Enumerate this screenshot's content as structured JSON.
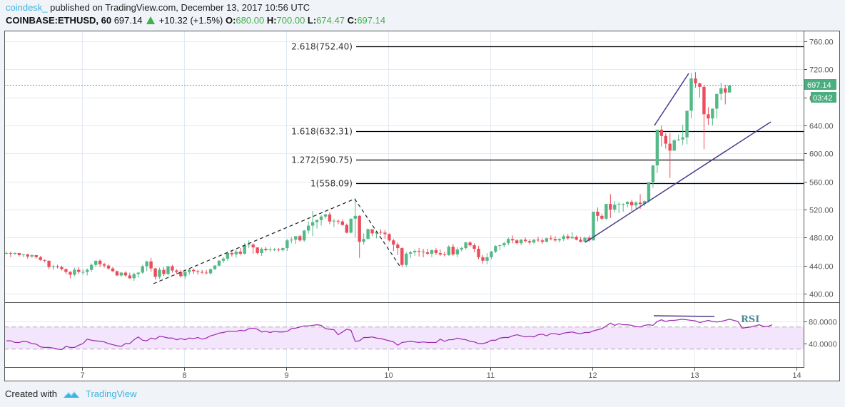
{
  "header": {
    "author": "coindesk_",
    "published": "published on TradingView.com, December 13, 2017 10:56 UTC",
    "symbol": "COINBASE:ETHUSD, 60",
    "last": "697.14",
    "change": "+10.32 (+1.5%)",
    "o_label": "O:",
    "o": "680.00",
    "h_label": "H:",
    "h": "700.00",
    "l_label": "L:",
    "l": "674.47",
    "c_label": "C:",
    "c": "697.14"
  },
  "footer": {
    "created_with": "Created with",
    "brand": "TradingView"
  },
  "colors": {
    "up": "#53b987",
    "down": "#eb4d5c",
    "rsi": "#9c27b0",
    "rsi_band": "#f3e5fc",
    "trend": "#4a3b8f",
    "last_price": "#4bae80",
    "author": "#3ab4e0"
  },
  "chart_data": {
    "type": "candlestick",
    "title": "COINBASE:ETHUSD, 60",
    "xlabel": "",
    "ylabel": "",
    "ylim": [
      390,
      770
    ],
    "y_ticks": [
      "760.00",
      "720.00",
      "680.00",
      "640.00",
      "600.00",
      "560.00",
      "520.00",
      "480.00",
      "440.00",
      "400.00"
    ],
    "x_ticks": [
      "7",
      "8",
      "9",
      "10",
      "11",
      "12",
      "13",
      "14"
    ],
    "last_price_label": "697.14",
    "countdown_label": "03:42",
    "fib_levels": [
      {
        "label": "2.618(752.40)",
        "value": 752.4
      },
      {
        "label": "1.618(632.31)",
        "value": 632.31
      },
      {
        "label": "1.272(590.75)",
        "value": 590.75
      },
      {
        "label": "1(558.09)",
        "value": 558.09
      }
    ],
    "candles_ohlc": [
      [
        458,
        460,
        456,
        458
      ],
      [
        458,
        460,
        452,
        457
      ],
      [
        457,
        459,
        455,
        458
      ],
      [
        458,
        458,
        453,
        455
      ],
      [
        455,
        457,
        452,
        456
      ],
      [
        456,
        457,
        450,
        453
      ],
      [
        453,
        456,
        451,
        455
      ],
      [
        455,
        455,
        450,
        452
      ],
      [
        452,
        454,
        447,
        448
      ],
      [
        448,
        449,
        445,
        447
      ],
      [
        447,
        447,
        435,
        438
      ],
      [
        438,
        441,
        434,
        439
      ],
      [
        439,
        441,
        436,
        438
      ],
      [
        438,
        440,
        433,
        435
      ],
      [
        435,
        436,
        428,
        431
      ],
      [
        431,
        432,
        422,
        427
      ],
      [
        427,
        437,
        425,
        434
      ],
      [
        434,
        438,
        428,
        431
      ],
      [
        431,
        435,
        427,
        431
      ],
      [
        431,
        436,
        426,
        434
      ],
      [
        434,
        443,
        431,
        441
      ],
      [
        441,
        447,
        438,
        447
      ],
      [
        447,
        449,
        438,
        442
      ],
      [
        442,
        444,
        437,
        440
      ],
      [
        440,
        442,
        434,
        436
      ],
      [
        436,
        438,
        431,
        432
      ],
      [
        432,
        433,
        425,
        426
      ],
      [
        426,
        431,
        424,
        430
      ],
      [
        430,
        432,
        424,
        426
      ],
      [
        426,
        430,
        421,
        422
      ],
      [
        422,
        430,
        418,
        428
      ],
      [
        428,
        431,
        423,
        430
      ],
      [
        430,
        441,
        428,
        439
      ],
      [
        439,
        447,
        432,
        446
      ],
      [
        446,
        451,
        431,
        436
      ],
      [
        436,
        437,
        420,
        424
      ],
      [
        424,
        437,
        421,
        434
      ],
      [
        434,
        438,
        425,
        428
      ],
      [
        428,
        440,
        426,
        439
      ],
      [
        439,
        441,
        430,
        433
      ],
      [
        433,
        435,
        428,
        431
      ],
      [
        431,
        434,
        423,
        425
      ],
      [
        425,
        434,
        421,
        431
      ],
      [
        431,
        435,
        427,
        434
      ],
      [
        434,
        436,
        428,
        432
      ],
      [
        432,
        434,
        427,
        431
      ],
      [
        431,
        434,
        428,
        430
      ],
      [
        430,
        434,
        428,
        429
      ],
      [
        429,
        436,
        427,
        435
      ],
      [
        435,
        441,
        434,
        440
      ],
      [
        440,
        448,
        439,
        447
      ],
      [
        447,
        452,
        444,
        450
      ],
      [
        450,
        460,
        447,
        458
      ],
      [
        458,
        461,
        453,
        456
      ],
      [
        456,
        463,
        451,
        460
      ],
      [
        460,
        465,
        455,
        457
      ],
      [
        457,
        472,
        456,
        469
      ],
      [
        469,
        476,
        465,
        470
      ],
      [
        470,
        472,
        457,
        466
      ],
      [
        466,
        466,
        456,
        458
      ],
      [
        458,
        466,
        454,
        464
      ],
      [
        464,
        467,
        460,
        462
      ],
      [
        462,
        466,
        460,
        463
      ],
      [
        463,
        465,
        461,
        463
      ],
      [
        463,
        465,
        460,
        462
      ],
      [
        462,
        466,
        460,
        465
      ],
      [
        465,
        478,
        461,
        476
      ],
      [
        476,
        481,
        472,
        477
      ],
      [
        477,
        482,
        471,
        482
      ],
      [
        482,
        484,
        474,
        476
      ],
      [
        476,
        491,
        474,
        490
      ],
      [
        490,
        503,
        486,
        497
      ],
      [
        497,
        518,
        482,
        502
      ],
      [
        502,
        506,
        493,
        505
      ],
      [
        505,
        512,
        497,
        510
      ],
      [
        510,
        514,
        507,
        513
      ],
      [
        513,
        516,
        499,
        503
      ],
      [
        503,
        507,
        495,
        504
      ],
      [
        504,
        506,
        499,
        503
      ],
      [
        503,
        506,
        497,
        498
      ],
      [
        498,
        500,
        486,
        487
      ],
      [
        487,
        507,
        486,
        507
      ],
      [
        507,
        535,
        480,
        511
      ],
      [
        511,
        512,
        451,
        474
      ],
      [
        474,
        486,
        470,
        478
      ],
      [
        478,
        493,
        478,
        492
      ],
      [
        492,
        490,
        482,
        486
      ],
      [
        486,
        490,
        479,
        488
      ],
      [
        488,
        492,
        484,
        487
      ],
      [
        487,
        491,
        478,
        485
      ],
      [
        485,
        486,
        474,
        476
      ],
      [
        476,
        478,
        461,
        470
      ],
      [
        470,
        473,
        455,
        465
      ],
      [
        465,
        466,
        438,
        441
      ],
      [
        441,
        459,
        438,
        457
      ],
      [
        457,
        461,
        451,
        459
      ],
      [
        459,
        463,
        454,
        461
      ],
      [
        461,
        465,
        453,
        460
      ],
      [
        460,
        464,
        452,
        459
      ],
      [
        459,
        464,
        455,
        457
      ],
      [
        457,
        463,
        452,
        462
      ],
      [
        462,
        465,
        455,
        458
      ],
      [
        458,
        463,
        454,
        456
      ],
      [
        456,
        460,
        453,
        455
      ],
      [
        455,
        469,
        454,
        467
      ],
      [
        467,
        471,
        454,
        456
      ],
      [
        456,
        466,
        452,
        463
      ],
      [
        463,
        467,
        460,
        465
      ],
      [
        465,
        474,
        463,
        473
      ],
      [
        473,
        475,
        467,
        469
      ],
      [
        469,
        472,
        459,
        464
      ],
      [
        464,
        468,
        449,
        452
      ],
      [
        452,
        455,
        443,
        447
      ],
      [
        447,
        458,
        442,
        452
      ],
      [
        452,
        461,
        449,
        460
      ],
      [
        460,
        469,
        458,
        468
      ],
      [
        468,
        470,
        462,
        469
      ],
      [
        469,
        474,
        466,
        472
      ],
      [
        472,
        480,
        469,
        478
      ],
      [
        478,
        483,
        472,
        476
      ],
      [
        476,
        478,
        470,
        472
      ],
      [
        472,
        478,
        469,
        477
      ],
      [
        477,
        480,
        473,
        475
      ],
      [
        475,
        478,
        470,
        473
      ],
      [
        473,
        478,
        471,
        477
      ],
      [
        477,
        481,
        474,
        476
      ],
      [
        476,
        479,
        471,
        474
      ],
      [
        474,
        480,
        473,
        479
      ],
      [
        479,
        483,
        476,
        478
      ],
      [
        478,
        482,
        474,
        476
      ],
      [
        476,
        479,
        473,
        478
      ],
      [
        478,
        485,
        475,
        482
      ],
      [
        482,
        485,
        477,
        479
      ],
      [
        479,
        488,
        478,
        481
      ],
      [
        481,
        483,
        476,
        477
      ],
      [
        477,
        481,
        473,
        474
      ],
      [
        474,
        481,
        473,
        480
      ],
      [
        480,
        483,
        474,
        476
      ],
      [
        476,
        516,
        476,
        517
      ],
      [
        517,
        523,
        503,
        511
      ],
      [
        511,
        514,
        505,
        507
      ],
      [
        507,
        528,
        505,
        528
      ],
      [
        528,
        542,
        508,
        520
      ],
      [
        520,
        532,
        516,
        527
      ],
      [
        527,
        531,
        515,
        528
      ],
      [
        528,
        529,
        517,
        528
      ],
      [
        528,
        532,
        523,
        531
      ],
      [
        531,
        534,
        518,
        526
      ],
      [
        526,
        532,
        521,
        530
      ],
      [
        530,
        542,
        521,
        528
      ],
      [
        528,
        533,
        525,
        532
      ],
      [
        532,
        558,
        530,
        559
      ],
      [
        559,
        575,
        551,
        583
      ],
      [
        583,
        607,
        572,
        634
      ],
      [
        634,
        640,
        610,
        625
      ],
      [
        625,
        629,
        607,
        614
      ],
      [
        614,
        629,
        565,
        604
      ],
      [
        604,
        620,
        604,
        619
      ],
      [
        619,
        627,
        618,
        620
      ],
      [
        620,
        641,
        612,
        623
      ],
      [
        623,
        648,
        613,
        661
      ],
      [
        661,
        715,
        650,
        707
      ],
      [
        707,
        716,
        694,
        700
      ],
      [
        700,
        701,
        680,
        695
      ],
      [
        695,
        698,
        606,
        656
      ],
      [
        656,
        666,
        641,
        650
      ],
      [
        650,
        664,
        640,
        664
      ],
      [
        664,
        678,
        650,
        685
      ],
      [
        685,
        701,
        676,
        693
      ],
      [
        693,
        698,
        670,
        687
      ],
      [
        687,
        696,
        688,
        697
      ]
    ],
    "rsi": {
      "label": "RSI",
      "y_ticks": [
        "80.0000",
        "40.0000"
      ],
      "upper": 70,
      "lower": 30,
      "values": [
        45,
        45,
        42,
        42,
        44,
        43,
        40,
        39,
        34,
        33,
        33,
        32,
        30,
        29,
        35,
        33,
        33,
        37,
        40,
        48,
        46,
        45,
        44,
        43,
        40,
        38,
        36,
        35,
        40,
        40,
        47,
        52,
        46,
        45,
        50,
        48,
        53,
        52,
        50,
        50,
        47,
        49,
        47,
        50,
        49,
        51,
        48,
        50,
        54,
        56,
        59,
        60,
        62,
        62,
        62,
        64,
        63,
        67,
        68,
        66,
        61,
        62,
        60,
        62,
        61,
        61,
        62,
        67,
        68,
        70,
        72,
        72,
        73,
        74,
        73,
        67,
        66,
        65,
        56,
        61,
        66,
        64,
        44,
        45,
        51,
        51,
        52,
        50,
        49,
        47,
        45,
        43,
        37,
        42,
        43,
        44,
        43,
        42,
        43,
        42,
        42,
        42,
        48,
        44,
        47,
        47,
        50,
        48,
        47,
        44,
        43,
        40,
        40,
        42,
        46,
        46,
        50,
        51,
        51,
        54,
        56,
        54,
        52,
        53,
        52,
        56,
        57,
        54,
        58,
        58,
        56,
        59,
        60,
        61,
        59,
        58,
        60,
        60,
        63,
        65,
        67,
        72,
        77,
        73,
        76,
        74,
        74,
        73,
        71,
        70,
        73,
        74,
        73,
        80,
        83,
        80,
        82,
        82,
        83,
        84,
        83,
        82,
        81,
        78,
        80,
        82,
        80,
        79,
        80,
        82,
        84,
        82,
        80,
        68,
        69,
        70,
        72,
        74,
        71,
        71,
        74
      ]
    }
  }
}
